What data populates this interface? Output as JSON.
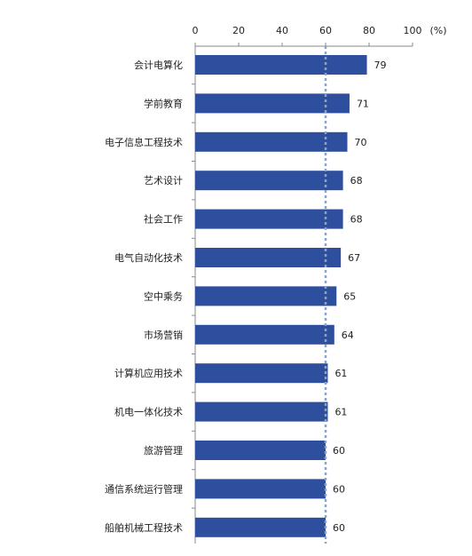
{
  "chart_data": {
    "type": "bar",
    "orientation": "horizontal",
    "categories": [
      "会计电算化",
      "学前教育",
      "电子信息工程技术",
      "艺术设计",
      "社会工作",
      "电气自动化技术",
      "空中乘务",
      "市场营销",
      "计算机应用技术",
      "机电一体化技术",
      "旅游管理",
      "通信系统运行管理",
      "船舶机械工程技术"
    ],
    "values": [
      79,
      71,
      70,
      68,
      68,
      67,
      65,
      64,
      61,
      61,
      60,
      60,
      60
    ],
    "value_labels": [
      "79",
      "71",
      "70",
      "68",
      "68",
      "67",
      "65",
      "64",
      "61",
      "61",
      "60",
      "60",
      "60"
    ],
    "x_ticks": [
      "0",
      "20",
      "40",
      "60",
      "80",
      "100"
    ],
    "x_unit": "(%)",
    "xlim": [
      0,
      100
    ],
    "reference_line": 60,
    "axis_position": "top",
    "grid": false,
    "bar_color": "#2e4f9e",
    "reference_line_color": "#8aa3c8"
  }
}
